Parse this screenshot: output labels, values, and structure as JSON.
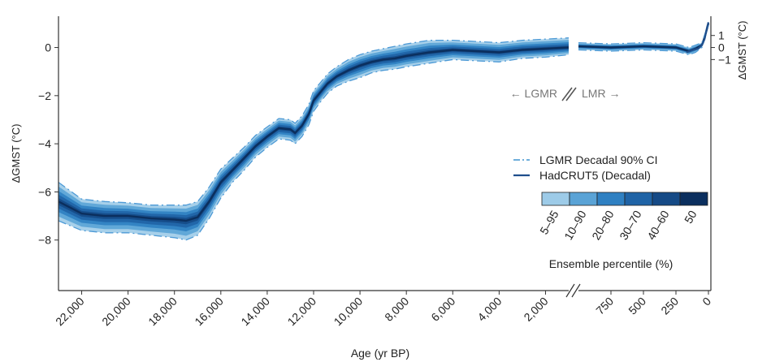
{
  "chart_data": {
    "type": "area",
    "ylabel_left": "ΔGMST (°C)",
    "ylabel_right": "ΔGMST (°C)",
    "xlabel": "Age (yr BP)",
    "left_axis": {
      "ylim": [
        -10.1,
        1.3
      ],
      "ticks": [
        0,
        -2,
        -4,
        -6,
        -8
      ],
      "tick_labels": [
        "0",
        "−2",
        "−4",
        "−6",
        "−8"
      ]
    },
    "right_axis": {
      "ticks": [
        1,
        0,
        -1
      ],
      "tick_labels": [
        "1",
        "0",
        "−1"
      ]
    },
    "x_lgmr": {
      "range": [
        23000,
        1000
      ],
      "ticks": [
        22000,
        20000,
        18000,
        16000,
        14000,
        12000,
        10000,
        8000,
        6000,
        4000,
        2000
      ],
      "tick_labels": [
        "22,000",
        "20,000",
        "18,000",
        "16,000",
        "14,000",
        "12,000",
        "10,000",
        "8,000",
        "6,000",
        "4,000",
        "2,000"
      ]
    },
    "x_lmr": {
      "range": [
        1000,
        0
      ],
      "ticks": [
        750,
        500,
        250,
        0
      ],
      "tick_labels": [
        "750",
        "500",
        "250",
        "0"
      ]
    },
    "break_labels": {
      "left": "← LGMR",
      "right": "LMR →"
    },
    "legend": {
      "placement": "right",
      "entries": [
        "LGMR Decadal 90% CI",
        "HadCRUT5 (Decadal)"
      ],
      "colorbar_title": "Ensemble percentile (%)",
      "colorbar_labels": [
        "5–95",
        "10–90",
        "20–80",
        "30–70",
        "40–60",
        "50"
      ],
      "colorbar_colors": [
        "#9dcbe8",
        "#5aa3d6",
        "#2f80c2",
        "#1f63a6",
        "#154a86",
        "#0b2f5e"
      ]
    },
    "series": [
      {
        "name": "LGMR",
        "x": [
          23000,
          22000,
          21000,
          20000,
          19000,
          18000,
          17500,
          17000,
          16500,
          16000,
          15500,
          15000,
          14500,
          14000,
          13500,
          13000,
          12800,
          12500,
          12200,
          12000,
          11700,
          11400,
          11000,
          10500,
          10000,
          9500,
          9000,
          8500,
          8000,
          7000,
          6000,
          5000,
          4000,
          3000,
          2000,
          1000
        ],
        "median": [
          -6.4,
          -6.9,
          -7.0,
          -7.0,
          -7.1,
          -7.15,
          -7.2,
          -7.05,
          -6.4,
          -5.6,
          -5.1,
          -4.6,
          -4.1,
          -3.7,
          -3.35,
          -3.4,
          -3.55,
          -3.25,
          -2.75,
          -2.2,
          -1.85,
          -1.5,
          -1.2,
          -0.95,
          -0.75,
          -0.6,
          -0.5,
          -0.45,
          -0.35,
          -0.2,
          -0.1,
          -0.15,
          -0.2,
          -0.1,
          -0.05,
          0.0
        ],
        "ci_upper": [
          -5.6,
          -6.3,
          -6.4,
          -6.45,
          -6.55,
          -6.55,
          -6.55,
          -6.4,
          -5.8,
          -5.05,
          -4.6,
          -4.15,
          -3.65,
          -3.3,
          -2.95,
          -3.0,
          -3.15,
          -2.85,
          -2.35,
          -1.8,
          -1.45,
          -1.1,
          -0.8,
          -0.5,
          -0.3,
          -0.15,
          -0.05,
          0.05,
          0.15,
          0.3,
          0.3,
          0.25,
          0.2,
          0.3,
          0.35,
          0.4
        ],
        "ci_lower": [
          -7.2,
          -7.6,
          -7.7,
          -7.7,
          -7.8,
          -7.9,
          -8.0,
          -7.8,
          -7.1,
          -6.25,
          -5.6,
          -5.1,
          -4.55,
          -4.15,
          -3.8,
          -3.85,
          -4.0,
          -3.7,
          -3.2,
          -2.65,
          -2.25,
          -1.9,
          -1.6,
          -1.4,
          -1.25,
          -1.05,
          -0.95,
          -0.9,
          -0.8,
          -0.65,
          -0.5,
          -0.55,
          -0.6,
          -0.45,
          -0.4,
          -0.3
        ]
      },
      {
        "name": "LMR",
        "x": [
          1000,
          750,
          500,
          250,
          150,
          100,
          50,
          25,
          0
        ],
        "median": [
          0.05,
          0.0,
          0.05,
          0.0,
          -0.15,
          -0.05,
          0.1,
          0.5,
          1.0
        ],
        "ci_upper": [
          0.2,
          0.15,
          0.2,
          0.15,
          0.0,
          0.1,
          0.2,
          0.6,
          1.05
        ],
        "ci_lower": [
          -0.1,
          -0.15,
          -0.1,
          -0.15,
          -0.3,
          -0.2,
          0.0,
          0.4,
          0.95
        ]
      },
      {
        "name": "HadCRUT5 (Decadal)",
        "x": [
          170,
          120,
          80,
          50,
          30,
          10,
          0
        ],
        "values": [
          -0.2,
          -0.1,
          -0.05,
          0.1,
          0.35,
          0.85,
          1.05
        ]
      }
    ]
  }
}
